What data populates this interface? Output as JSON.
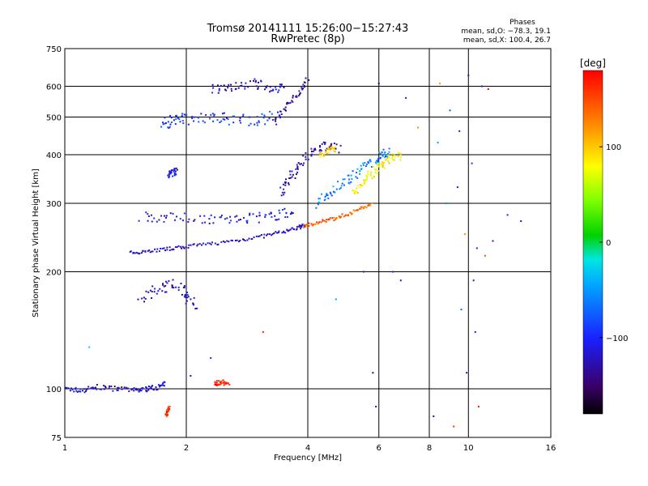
{
  "chart_data": {
    "type": "scatter",
    "title": "Tromsø 20141111 15:26:00−15:27:43",
    "subtitle": "RwPretec (8p)",
    "xlabel": "Frequency [MHz]",
    "ylabel": "Stationary phase Virtual Height [km]",
    "x_scale": "log2",
    "y_scale": "log",
    "xlim": [
      1,
      16
    ],
    "ylim": [
      75,
      750
    ],
    "x_ticks": [
      1,
      2,
      4,
      6,
      8,
      10,
      16
    ],
    "y_ticks": [
      75,
      100,
      200,
      300,
      400,
      500,
      600,
      750
    ],
    "x_grid": [
      2,
      4,
      6,
      8,
      10
    ],
    "y_grid": [
      100,
      200,
      300,
      400,
      500,
      600
    ],
    "grid": true,
    "phase_stats": {
      "heading": "Phases",
      "line_o": "mean, sd,O: −78.3, 19.1",
      "line_x": "mean, sd,X: 100.4, 26.7"
    },
    "colorbar": {
      "label": "[deg]",
      "range": [
        -180,
        180
      ],
      "ticks": [
        100,
        0,
        -100
      ],
      "tick_labels": [
        "100",
        "0",
        "−100"
      ]
    },
    "traces": [
      {
        "f": [
          1.0,
          1.1,
          1.2,
          1.35,
          1.5,
          1.6,
          1.7,
          1.78
        ],
        "h": [
          100,
          99,
          101,
          100,
          99,
          100,
          101,
          103
        ],
        "phase": -120,
        "spread": 0.015
      },
      {
        "f": [
          1.45,
          1.6,
          1.8,
          2.0,
          2.3,
          2.7,
          3.1,
          3.5,
          3.8,
          3.95
        ],
        "h": [
          224,
          226,
          229,
          232,
          236,
          241,
          247,
          254,
          260,
          264
        ],
        "phase": -120,
        "spread": 0.01
      },
      {
        "f": [
          3.9,
          4.2,
          4.6,
          5.0,
          5.4,
          5.8
        ],
        "h": [
          262,
          267,
          273,
          281,
          290,
          300
        ],
        "phase": 140,
        "spread": 0.01
      },
      {
        "f": [
          1.55,
          1.8,
          2.2,
          2.6,
          3.0,
          3.4,
          3.7
        ],
        "h": [
          278,
          276,
          274,
          273,
          275,
          280,
          286
        ],
        "phase": -110,
        "spread": 0.03
      },
      {
        "f": [
          1.75,
          1.85,
          2.0,
          2.3,
          2.6,
          3.0,
          3.3
        ],
        "h": [
          480,
          490,
          495,
          500,
          495,
          490,
          500
        ],
        "phase": -90,
        "spread": 0.035
      },
      {
        "f": [
          2.3,
          2.6,
          2.9,
          3.2,
          3.5
        ],
        "h": [
          590,
          600,
          610,
          600,
          590
        ],
        "phase": -120,
        "spread": 0.03
      },
      {
        "f": [
          1.55,
          1.7,
          1.85,
          2.0,
          2.1
        ],
        "h": [
          170,
          180,
          185,
          175,
          165
        ],
        "phase": -125,
        "spread": 0.04
      },
      {
        "f": [
          3.4,
          3.6,
          3.8,
          4.1,
          4.4,
          4.8
        ],
        "h": [
          320,
          345,
          375,
          405,
          420,
          415
        ],
        "phase": -125,
        "spread": 0.03
      },
      {
        "f": [
          4.2,
          4.5,
          4.9,
          5.3,
          5.7,
          6.1,
          6.4
        ],
        "h": [
          300,
          320,
          340,
          360,
          380,
          400,
          410
        ],
        "phase": -60,
        "spread": 0.03
      },
      {
        "f": [
          5.2,
          5.5,
          5.8,
          6.1,
          6.4,
          6.8
        ],
        "h": [
          320,
          340,
          360,
          375,
          390,
          400
        ],
        "phase": 80,
        "spread": 0.03
      },
      {
        "f": [
          3.3,
          3.5,
          3.8,
          4.0
        ],
        "h": [
          480,
          530,
          570,
          630
        ],
        "phase": -130,
        "spread": 0.02
      },
      {
        "f": [
          4.3,
          4.5,
          4.7
        ],
        "h": [
          400,
          410,
          415
        ],
        "phase": 100,
        "spread": 0.02
      },
      {
        "f": [
          1.8,
          1.85,
          1.9
        ],
        "h": [
          355,
          360,
          365
        ],
        "phase": -110,
        "spread": 0.02
      },
      {
        "f": [
          2.35,
          2.45,
          2.55
        ],
        "h": [
          103,
          104,
          103
        ],
        "phase": 170,
        "spread": 0.015
      },
      {
        "f": [
          1.78,
          1.8,
          1.82
        ],
        "h": [
          85,
          88,
          90
        ],
        "phase": 160,
        "spread": 0.01
      }
    ],
    "scatter_points": [
      {
        "f": 9.0,
        "h": 520,
        "phase": -80
      },
      {
        "f": 9.5,
        "h": 460,
        "phase": -110
      },
      {
        "f": 10.2,
        "h": 380,
        "phase": -90
      },
      {
        "f": 8.8,
        "h": 300,
        "phase": -60
      },
      {
        "f": 9.8,
        "h": 250,
        "phase": 120
      },
      {
        "f": 10.5,
        "h": 230,
        "phase": -100
      },
      {
        "f": 11.0,
        "h": 220,
        "phase": 150
      },
      {
        "f": 9.6,
        "h": 160,
        "phase": -70
      },
      {
        "f": 10.4,
        "h": 140,
        "phase": -110
      },
      {
        "f": 9.9,
        "h": 110,
        "phase": -120
      },
      {
        "f": 10.6,
        "h": 90,
        "phase": 170
      },
      {
        "f": 8.2,
        "h": 85,
        "phase": -150
      },
      {
        "f": 9.2,
        "h": 80,
        "phase": 160
      },
      {
        "f": 7.0,
        "h": 560,
        "phase": -120
      },
      {
        "f": 7.5,
        "h": 470,
        "phase": 120
      },
      {
        "f": 8.4,
        "h": 430,
        "phase": -40
      },
      {
        "f": 12.5,
        "h": 280,
        "phase": -100
      },
      {
        "f": 13.5,
        "h": 270,
        "phase": -120
      },
      {
        "f": 11.5,
        "h": 240,
        "phase": -110
      },
      {
        "f": 10.8,
        "h": 600,
        "phase": -120
      },
      {
        "f": 11.2,
        "h": 590,
        "phase": 180
      },
      {
        "f": 6.5,
        "h": 200,
        "phase": -100
      },
      {
        "f": 6.8,
        "h": 190,
        "phase": -120
      },
      {
        "f": 5.5,
        "h": 200,
        "phase": -110
      },
      {
        "f": 4.7,
        "h": 170,
        "phase": -40
      },
      {
        "f": 3.1,
        "h": 140,
        "phase": 170
      },
      {
        "f": 5.8,
        "h": 110,
        "phase": -150
      },
      {
        "f": 5.9,
        "h": 90,
        "phase": -120
      },
      {
        "f": 10.0,
        "h": 640,
        "phase": -120
      },
      {
        "f": 8.5,
        "h": 610,
        "phase": 120
      },
      {
        "f": 6.0,
        "h": 610,
        "phase": -150
      },
      {
        "f": 9.4,
        "h": 330,
        "phase": -120
      },
      {
        "f": 10.3,
        "h": 190,
        "phase": -120
      },
      {
        "f": 2.3,
        "h": 120,
        "phase": -100
      },
      {
        "f": 2.05,
        "h": 108,
        "phase": -120
      },
      {
        "f": 1.15,
        "h": 128,
        "phase": -30
      }
    ]
  }
}
